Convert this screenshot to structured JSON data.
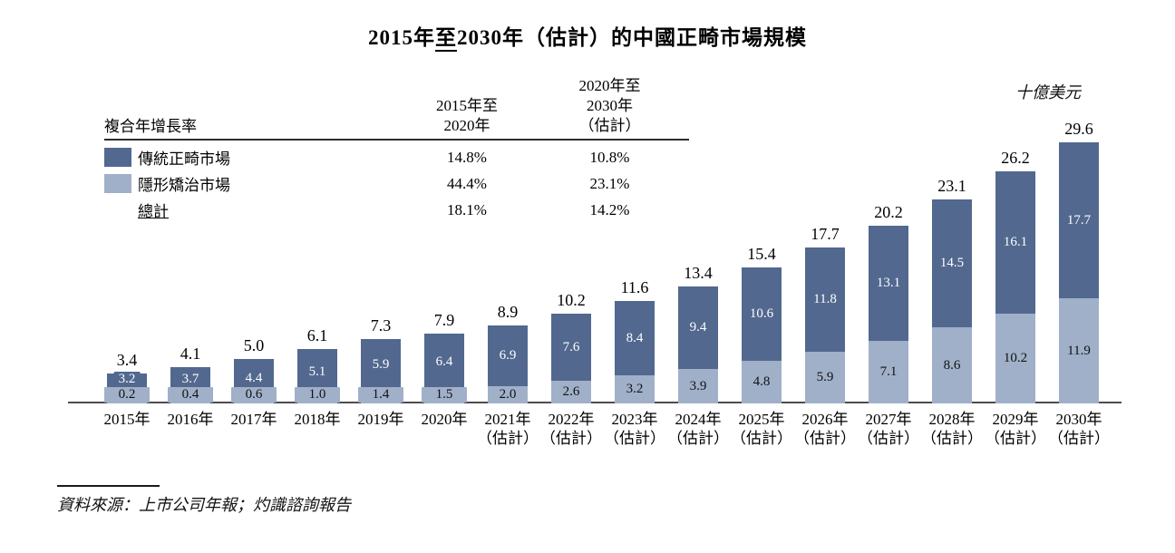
{
  "title": {
    "prefix": "2015年",
    "underlined": "至",
    "suffix": "2030年（估計）的中國正畸市場規模"
  },
  "unit_label": "十億美元",
  "colors": {
    "traditional_dark_blue": "#52688F",
    "invisible_light_blue": "#A0B0C9",
    "axis": "#4D4D4D"
  },
  "cagr_table": {
    "row_header": "複合年增長率",
    "col1_header": "2015年至\n2020年",
    "col2_header": "2020年至\n2030年\n（估計）",
    "rows": [
      {
        "label": "傳統正畸市場",
        "swatch": "traditional",
        "col1": "14.8%",
        "col2": "10.8%"
      },
      {
        "label": "隱形矯治市場",
        "swatch": "invisible",
        "col1": "44.4%",
        "col2": "23.1%"
      },
      {
        "label": "總計",
        "swatch": "none",
        "col1": "18.1%",
        "col2": "14.2%"
      }
    ]
  },
  "chart_data": {
    "type": "bar",
    "stacked": true,
    "title": "2015年至2030年（估計）的中國正畸市場規模",
    "unit": "十億美元",
    "ylim": [
      0,
      29.6
    ],
    "grid": false,
    "legend_position": "top-left-table",
    "categories": [
      "2015年",
      "2016年",
      "2017年",
      "2018年",
      "2019年",
      "2020年",
      "2021年",
      "2022年",
      "2023年",
      "2024年",
      "2025年",
      "2026年",
      "2027年",
      "2028年",
      "2029年",
      "2030年"
    ],
    "estimate_suffix": "（估計）",
    "estimate_from_index": 6,
    "series": [
      {
        "name": "隱形矯治市場",
        "values": [
          0.2,
          0.4,
          0.6,
          1.0,
          1.4,
          1.5,
          2.0,
          2.6,
          3.2,
          3.9,
          4.8,
          5.9,
          7.1,
          8.6,
          10.2,
          11.9
        ]
      },
      {
        "name": "傳統正畸市場",
        "values": [
          3.2,
          3.7,
          4.4,
          5.1,
          5.9,
          6.4,
          6.9,
          7.6,
          8.4,
          9.4,
          10.6,
          11.8,
          13.1,
          14.5,
          16.1,
          17.7
        ]
      }
    ],
    "totals": [
      3.4,
      4.1,
      5.0,
      6.1,
      7.3,
      7.9,
      8.9,
      10.2,
      11.6,
      13.4,
      15.4,
      17.7,
      20.2,
      23.1,
      26.2,
      29.6
    ]
  },
  "footer": {
    "source": "資料來源：上市公司年報；灼識諮詢報告"
  }
}
